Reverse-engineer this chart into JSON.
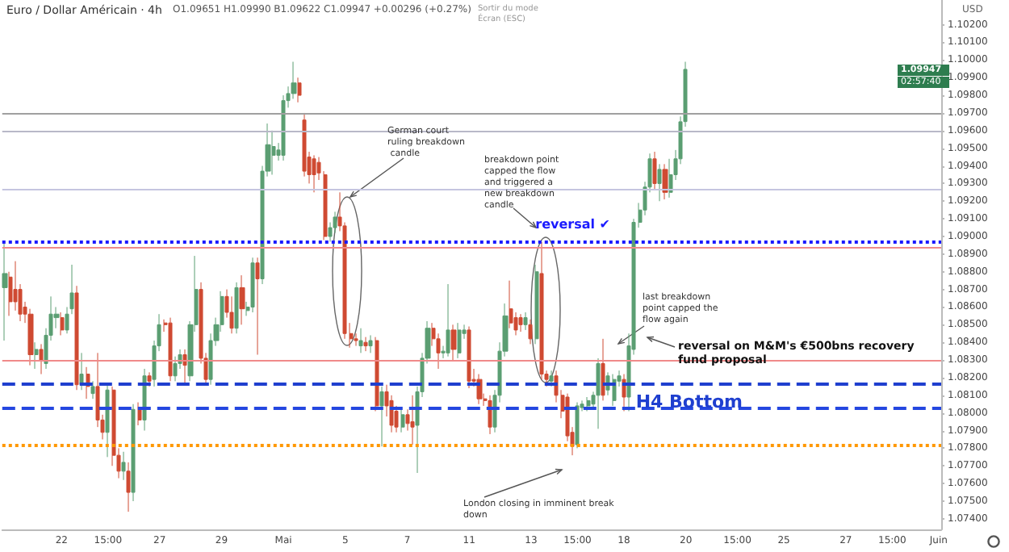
{
  "chart_data": {
    "type": "candlestick",
    "title": "Euro / Dollar Américain · 4h",
    "subtitle": "O1.09651 H1.09990 B1.09622 C1.09947 +0.00296 (+0.27%)",
    "annotations": [
      "Sortir du mode Écran (ESC)",
      "German court ruling breakdown candle",
      "breakdown point capped the flow and triggered a new breakdown candle",
      "last breakdown point capped the flow again",
      "reversal on M&M's €500bns recovery fund proposal",
      "London closing in imminent break down",
      "USD",
      "1.09947",
      "02:57:40"
    ],
    "categories": [
      null,
      null,
      null,
      null,
      null,
      null,
      null,
      null,
      null,
      null,
      null,
      "22",
      null,
      null,
      null,
      null,
      null,
      null,
      null,
      null,
      "15:00",
      null,
      null,
      null,
      null,
      null,
      null,
      null,
      null,
      null,
      "27",
      null,
      null,
      null,
      null,
      null,
      null,
      null,
      null,
      null,
      null,
      null,
      "29",
      null,
      null,
      null,
      null,
      null,
      null,
      null,
      null,
      null,
      null,
      null,
      "Mai",
      null,
      null,
      null,
      null,
      null,
      null,
      null,
      null,
      null,
      null,
      null,
      "5",
      null,
      null,
      null,
      null,
      null,
      null,
      null,
      null,
      null,
      null,
      null,
      "7",
      null,
      null,
      null,
      null,
      null,
      null,
      null,
      null,
      null,
      null,
      null,
      "11",
      null,
      null,
      null,
      null,
      null,
      null,
      null,
      null,
      null,
      null,
      null,
      "13",
      null,
      null,
      null,
      null,
      null,
      null,
      null,
      null,
      "15:00",
      null,
      null,
      null,
      null,
      null,
      null,
      null,
      null,
      "18",
      null,
      null,
      null,
      null,
      null,
      null,
      null,
      null,
      null,
      null,
      null,
      "20",
      null,
      null,
      null,
      null,
      null,
      null,
      null,
      null,
      null,
      "15:00",
      null,
      null,
      null,
      null,
      null,
      null,
      null,
      null,
      "25",
      null,
      null,
      null,
      null,
      null,
      null,
      null,
      null,
      null,
      null,
      null,
      "27",
      null,
      null,
      null,
      null,
      null,
      null,
      null,
      null,
      "15:00",
      null,
      null,
      null,
      null,
      null,
      null,
      null,
      null,
      "Juin"
    ],
    "ohlc": [
      [
        1.0871,
        1.0896,
        1.0841,
        1.0879
      ],
      [
        1.0877,
        1.088,
        1.0855,
        1.0863
      ],
      [
        1.087,
        1.0886,
        1.0858,
        1.0863
      ],
      [
        1.087,
        1.0873,
        1.0852,
        1.0856
      ],
      [
        1.086,
        1.0863,
        1.0851,
        1.0856
      ],
      [
        1.0856,
        1.0859,
        1.0827,
        1.0833
      ],
      [
        1.0833,
        1.084,
        1.0825,
        1.0836
      ],
      [
        1.0836,
        1.0839,
        1.0822,
        1.083
      ],
      [
        1.0828,
        1.0848,
        1.0825,
        1.0844
      ],
      [
        1.0844,
        1.0866,
        1.0841,
        1.0856
      ],
      [
        1.0854,
        1.086,
        1.0848,
        1.0856
      ],
      [
        1.0854,
        1.0857,
        1.0844,
        1.0847
      ],
      [
        1.0847,
        1.086,
        1.0845,
        1.0856
      ],
      [
        1.0859,
        1.0884,
        1.0856,
        1.0868
      ],
      [
        1.0868,
        1.0872,
        1.0813,
        1.0816
      ],
      [
        1.0816,
        1.0834,
        1.0813,
        1.0822
      ],
      [
        1.0822,
        1.0826,
        1.0808,
        1.0815
      ],
      [
        1.0811,
        1.0818,
        1.0808,
        1.0815
      ],
      [
        1.0815,
        1.0834,
        1.0792,
        1.0796
      ],
      [
        1.0796,
        1.0799,
        1.0785,
        1.0789
      ],
      [
        1.0789,
        1.0816,
        1.0775,
        1.0813
      ],
      [
        1.0813,
        1.0815,
        1.077,
        1.0776
      ],
      [
        1.0776,
        1.078,
        1.0763,
        1.0767
      ],
      [
        1.0767,
        1.0778,
        1.0762,
        1.0772
      ],
      [
        1.0767,
        1.0772,
        1.0744,
        1.0755
      ],
      [
        1.0755,
        1.0805,
        1.075,
        1.0802
      ],
      [
        1.0802,
        1.0806,
        1.0793,
        1.0796
      ],
      [
        1.0796,
        1.0825,
        1.079,
        1.0821
      ],
      [
        1.0821,
        1.0823,
        1.0815,
        1.0818
      ],
      [
        1.0819,
        1.0841,
        1.0815,
        1.0838
      ],
      [
        1.0838,
        1.0856,
        1.0835,
        1.085
      ],
      [
        1.0851,
        1.0853,
        1.0846,
        1.085
      ],
      [
        1.0851,
        1.0854,
        1.0818,
        1.0821
      ],
      [
        1.0821,
        1.0832,
        1.0818,
        1.0828
      ],
      [
        1.0828,
        1.0836,
        1.0825,
        1.0833
      ],
      [
        1.0833,
        1.0836,
        1.0817,
        1.0827
      ],
      [
        1.0821,
        1.0852,
        1.0818,
        1.085
      ],
      [
        1.085,
        1.0889,
        1.0846,
        1.087
      ],
      [
        1.087,
        1.0874,
        1.0828,
        1.0831
      ],
      [
        1.0831,
        1.0834,
        1.0816,
        1.0819
      ],
      [
        1.0819,
        1.0845,
        1.0816,
        1.0841
      ],
      [
        1.0841,
        1.0854,
        1.0838,
        1.085
      ],
      [
        1.085,
        1.0869,
        1.0846,
        1.0866
      ],
      [
        1.0866,
        1.087,
        1.0854,
        1.0857
      ],
      [
        1.0857,
        1.0866,
        1.0845,
        1.0848
      ],
      [
        1.0848,
        1.0874,
        1.0845,
        1.0871
      ],
      [
        1.0871,
        1.0878,
        1.085,
        1.0859
      ],
      [
        1.0858,
        1.0863,
        1.0855,
        1.086
      ],
      [
        1.086,
        1.0888,
        1.0857,
        1.0885
      ],
      [
        1.0885,
        1.0888,
        1.0833,
        1.0876
      ],
      [
        1.0876,
        1.094,
        1.0873,
        1.0937
      ],
      [
        1.0937,
        1.0964,
        1.0934,
        1.0952
      ],
      [
        1.0946,
        1.096,
        1.0935,
        1.0951
      ],
      [
        1.0946,
        1.0953,
        1.0943,
        1.0949
      ],
      [
        1.0946,
        1.098,
        1.0943,
        1.0977
      ],
      [
        1.0977,
        1.0985,
        1.0973,
        1.0981
      ],
      [
        1.0981,
        1.0999,
        1.0978,
        1.0987
      ],
      [
        1.0987,
        1.099,
        1.0976,
        1.098
      ],
      [
        1.0966,
        1.097,
        1.0934,
        1.0937
      ],
      [
        1.0945,
        1.0948,
        1.093,
        1.0935
      ],
      [
        1.0944,
        1.0946,
        1.0925,
        1.0935
      ],
      [
        1.0942,
        1.0945,
        1.0932,
        1.0936
      ],
      [
        1.0935,
        1.0937,
        1.0898,
        1.09
      ],
      [
        1.09,
        1.0908,
        1.0897,
        1.0905
      ],
      [
        1.0905,
        1.0914,
        1.0902,
        1.0911
      ],
      [
        1.0911,
        1.0925,
        1.0903,
        1.0906
      ],
      [
        1.0906,
        1.0908,
        1.0842,
        1.0845
      ],
      [
        1.0845,
        1.0851,
        1.0837,
        1.0842
      ],
      [
        1.0842,
        1.0845,
        1.0838,
        1.0841
      ],
      [
        1.0838,
        1.0848,
        1.0834,
        1.0841
      ],
      [
        1.084,
        1.0843,
        1.0835,
        1.0838
      ],
      [
        1.0838,
        1.0844,
        1.0834,
        1.0841
      ],
      [
        1.0841,
        1.0843,
        1.0801,
        1.0804
      ],
      [
        1.0804,
        1.0815,
        1.0781,
        1.0812
      ],
      [
        1.0812,
        1.0816,
        1.0798,
        1.0804
      ],
      [
        1.0807,
        1.081,
        1.0789,
        1.0793
      ],
      [
        1.0801,
        1.0804,
        1.0789,
        1.0792
      ],
      [
        1.0792,
        1.0802,
        1.0789,
        1.0799
      ],
      [
        1.0799,
        1.0802,
        1.079,
        1.0794
      ],
      [
        1.0795,
        1.081,
        1.0782,
        1.0792
      ],
      [
        1.0793,
        1.0815,
        1.0766,
        1.0812
      ],
      [
        1.0812,
        1.0834,
        1.0809,
        1.0831
      ],
      [
        1.0831,
        1.0852,
        1.0828,
        1.0848
      ],
      [
        1.0848,
        1.0851,
        1.0838,
        1.0842
      ],
      [
        1.0842,
        1.0845,
        1.0825,
        1.0834
      ],
      [
        1.0834,
        1.0838,
        1.0831,
        1.0835
      ],
      [
        1.0834,
        1.0873,
        1.0832,
        1.0847
      ],
      [
        1.0847,
        1.085,
        1.083,
        1.0836
      ],
      [
        1.0834,
        1.0851,
        1.0831,
        1.0847
      ],
      [
        1.0845,
        1.085,
        1.0842,
        1.0847
      ],
      [
        1.0847,
        1.0849,
        1.0814,
        1.0818
      ],
      [
        1.0819,
        1.0825,
        1.0815,
        1.0818
      ],
      [
        1.0819,
        1.0822,
        1.0805,
        1.0808
      ],
      [
        1.0808,
        1.0811,
        1.0804,
        1.0807
      ],
      [
        1.0807,
        1.081,
        1.0788,
        1.0792
      ],
      [
        1.0792,
        1.0813,
        1.0789,
        1.081
      ],
      [
        1.081,
        1.084,
        1.0806,
        1.0835
      ],
      [
        1.0835,
        1.0862,
        1.0832,
        1.0855
      ],
      [
        1.0859,
        1.0875,
        1.0848,
        1.0851
      ],
      [
        1.0854,
        1.0857,
        1.0844,
        1.0847
      ],
      [
        1.0854,
        1.0856,
        1.0846,
        1.085
      ],
      [
        1.085,
        1.0857,
        1.0847,
        1.0854
      ],
      [
        1.085,
        1.0853,
        1.0839,
        1.0842
      ],
      [
        1.0842,
        1.0884,
        1.0839,
        1.088
      ],
      [
        1.0879,
        1.0897,
        1.0819,
        1.0822
      ],
      [
        1.0822,
        1.0824,
        1.0815,
        1.0819
      ],
      [
        1.0818,
        1.0824,
        1.0815,
        1.0821
      ],
      [
        1.0821,
        1.0824,
        1.0806,
        1.081
      ],
      [
        1.081,
        1.0813,
        1.0797,
        1.0801
      ],
      [
        1.0809,
        1.0811,
        1.0784,
        1.0787
      ],
      [
        1.0789,
        1.0792,
        1.0776,
        1.0781
      ],
      [
        1.0782,
        1.0806,
        1.078,
        1.0804
      ],
      [
        1.0803,
        1.0807,
        1.0801,
        1.0805
      ],
      [
        1.0804,
        1.0809,
        1.0801,
        1.0807
      ],
      [
        1.0805,
        1.0812,
        1.0802,
        1.081
      ],
      [
        1.081,
        1.0831,
        1.0791,
        1.0828
      ],
      [
        1.0828,
        1.0842,
        1.0807,
        1.081
      ],
      [
        1.0813,
        1.0823,
        1.081,
        1.0821
      ],
      [
        1.0807,
        1.0822,
        1.0804,
        1.0819
      ],
      [
        1.0818,
        1.0824,
        1.0815,
        1.0821
      ],
      [
        1.0819,
        1.0822,
        1.0801,
        1.0809
      ],
      [
        1.0809,
        1.0845,
        1.0801,
        1.0838
      ],
      [
        1.0836,
        1.091,
        1.0833,
        1.0908
      ],
      [
        1.0908,
        1.0919,
        1.0905,
        1.0915
      ],
      [
        1.0915,
        1.0931,
        1.0912,
        1.0928
      ],
      [
        1.0928,
        1.0947,
        1.0925,
        1.0944
      ],
      [
        1.0944,
        1.0948,
        1.0927,
        1.093
      ],
      [
        1.093,
        1.0941,
        1.092,
        1.0938
      ],
      [
        1.0938,
        1.0941,
        1.0921,
        1.0925
      ],
      [
        1.0925,
        1.0944,
        1.0922,
        1.0935
      ],
      [
        1.0935,
        1.0949,
        1.0932,
        1.0944
      ],
      [
        1.0944,
        1.0968,
        1.0941,
        1.0965
      ],
      [
        1.09651,
        1.0999,
        1.09622,
        1.09947
      ],
      null,
      null,
      null,
      null,
      null,
      null,
      null,
      null,
      null,
      null,
      null,
      null,
      null,
      null,
      null,
      null,
      null,
      null,
      null,
      null,
      null,
      null,
      null,
      null,
      null,
      null,
      null,
      null,
      null,
      null,
      null,
      null,
      null,
      null,
      null,
      null,
      null,
      null,
      null,
      null,
      null,
      null,
      null,
      null,
      null,
      null,
      null,
      null,
      null
    ],
    "colors": [
      "#5b9e72",
      "#cf4a32",
      "#cf4a32",
      "#cf4a32",
      "#cf4a32",
      "#cf4a32",
      "#5b9e72",
      "#cf4a32",
      "#5b9e72",
      "#5b9e72",
      "#5b9e72",
      "#cf4a32",
      "#5b9e72",
      "#5b9e72",
      "#cf4a32",
      "#5b9e72",
      "#cf4a32",
      "#5b9e72",
      "#cf4a32",
      "#cf4a32",
      "#5b9e72",
      "#cf4a32",
      "#cf4a32",
      "#5b9e72",
      "#cf4a32",
      "#5b9e72",
      "#cf4a32",
      "#5b9e72",
      "#cf4a32",
      "#5b9e72",
      "#5b9e72",
      "#cf4a32",
      "#cf4a32",
      "#5b9e72",
      "#5b9e72",
      "#cf4a32",
      "#5b9e72",
      "#5b9e72",
      "#cf4a32",
      "#cf4a32",
      "#5b9e72",
      "#5b9e72",
      "#5b9e72",
      "#cf4a32",
      "#cf4a32",
      "#5b9e72",
      "#cf4a32",
      "#5b9e72",
      "#5b9e72",
      "#cf4a32",
      "#5b9e72",
      "#5b9e72",
      "#5b9e72",
      "#5b9e72",
      "#5b9e72",
      "#5b9e72",
      "#5b9e72",
      "#cf4a32",
      "#cf4a32",
      "#cf4a32",
      "#cf4a32",
      "#cf4a32",
      "#cf4a32",
      "#5b9e72",
      "#5b9e72",
      "#cf4a32",
      "#cf4a32",
      "#cf4a32",
      "#cf4a32",
      "#5b9e72",
      "#cf4a32",
      "#5b9e72",
      "#cf4a32",
      "#5b9e72",
      "#cf4a32",
      "#cf4a32",
      "#cf4a32",
      "#5b9e72",
      "#cf4a32",
      "#cf4a32",
      "#5b9e72",
      "#5b9e72",
      "#5b9e72",
      "#cf4a32",
      "#cf4a32",
      "#5b9e72",
      "#5b9e72",
      "#cf4a32",
      "#5b9e72",
      "#5b9e72",
      "#cf4a32",
      "#cf4a32",
      "#cf4a32",
      "#cf4a32",
      "#cf4a32",
      "#5b9e72",
      "#5b9e72",
      "#5b9e72",
      "#cf4a32",
      "#cf4a32",
      "#cf4a32",
      "#5b9e72",
      "#cf4a32",
      "#5b9e72",
      "#cf4a32",
      "#cf4a32",
      "#5b9e72",
      "#cf4a32",
      "#cf4a32",
      "#cf4a32",
      "#cf4a32",
      "#5b9e72",
      "#5b9e72",
      "#5b9e72",
      "#5b9e72",
      "#5b9e72",
      "#cf4a32",
      "#5b9e72",
      "#5b9e72",
      "#5b9e72",
      "#cf4a32",
      "#5b9e72",
      "#5b9e72",
      "#5b9e72",
      "#5b9e72",
      "#5b9e72",
      "#cf4a32",
      "#5b9e72",
      "#cf4a32",
      "#5b9e72",
      "#5b9e72",
      "#5b9e72",
      "#5b9e72",
      null,
      null,
      null,
      null,
      null,
      null,
      null,
      null,
      null,
      null,
      null,
      null,
      null,
      null,
      null,
      null,
      null,
      null,
      null,
      null,
      null,
      null,
      null,
      null,
      null,
      null,
      null,
      null,
      null,
      null,
      null,
      null,
      null,
      null,
      null,
      null,
      null,
      null,
      null,
      null,
      null,
      null,
      null,
      null,
      null,
      null,
      null,
      null,
      null
    ],
    "ylim": [
      1.0734,
      1.1034
    ],
    "yticks": [
      {
        "value": 1.074,
        "label": "1.07400"
      },
      {
        "value": 1.075,
        "label": "1.07500"
      },
      {
        "value": 1.076,
        "label": "1.07600"
      },
      {
        "value": 1.077,
        "label": "1.07700"
      },
      {
        "value": 1.078,
        "label": "1.07800"
      },
      {
        "value": 1.079,
        "label": "1.07900"
      },
      {
        "value": 1.08,
        "label": "1.08000"
      },
      {
        "value": 1.081,
        "label": "1.08100"
      },
      {
        "value": 1.082,
        "label": "1.08200"
      },
      {
        "value": 1.083,
        "label": "1.08300"
      },
      {
        "value": 1.084,
        "label": "1.08400"
      },
      {
        "value": 1.085,
        "label": "1.08500"
      },
      {
        "value": 1.086,
        "label": "1.08600"
      },
      {
        "value": 1.087,
        "label": "1.08700"
      },
      {
        "value": 1.088,
        "label": "1.08800"
      },
      {
        "value": 1.089,
        "label": "1.08900"
      },
      {
        "value": 1.09,
        "label": "1.09000"
      },
      {
        "value": 1.091,
        "label": "1.09100"
      },
      {
        "value": 1.092,
        "label": "1.09200"
      },
      {
        "value": 1.093,
        "label": "1.09300"
      },
      {
        "value": 1.094,
        "label": "1.09400"
      },
      {
        "value": 1.095,
        "label": "1.09500"
      },
      {
        "value": 1.096,
        "label": "1.09600"
      },
      {
        "value": 1.097,
        "label": "1.09700"
      },
      {
        "value": 1.098,
        "label": "1.09800"
      },
      {
        "value": 1.099,
        "label": "1.09900"
      },
      {
        "value": 1.1,
        "label": "1.10000"
      },
      {
        "value": 1.101,
        "label": "1.10100"
      },
      {
        "value": 1.102,
        "label": "1.10200"
      }
    ],
    "ref_lines": [
      {
        "axis": "y",
        "value": 1.097,
        "color": "#a0a0a0",
        "line_style": "solid"
      },
      {
        "axis": "y",
        "value": 1.096,
        "color": "#b8b8c8",
        "line_style": "solid"
      },
      {
        "axis": "y",
        "value": 1.0927,
        "color": "#c5c5e0",
        "line_style": "solid"
      },
      {
        "axis": "y",
        "value": 1.0897,
        "label": "reversal ✔",
        "color": "#1a1aff",
        "line_style": "dotted"
      },
      {
        "axis": "y",
        "value": 1.0894,
        "color": "#f08a8a",
        "line_style": "solid"
      },
      {
        "axis": "y",
        "value": 1.083,
        "color": "#f08a8a",
        "line_style": "solid"
      },
      {
        "axis": "y",
        "value": 1.0817,
        "label": "H4 Bottom",
        "color": "#1f3fcf",
        "line_style": "dashed"
      },
      {
        "axis": "y",
        "value": 1.0803,
        "color": "#2447e0",
        "line_style": "dashed"
      },
      {
        "axis": "y",
        "value": 1.0782,
        "color": "#ff9800",
        "line_style": "dotted"
      }
    ]
  }
}
